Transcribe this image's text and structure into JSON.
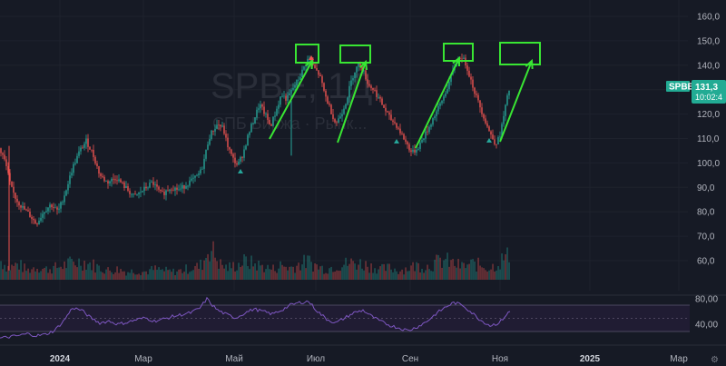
{
  "chart_data": [
    {
      "type": "candlestick",
      "ticker": "SPBE",
      "watermark_symbol": "SPBE, 1Д",
      "watermark_desc": "СПБ Биржа · Рынк...",
      "current_price": "131,3",
      "countdown": "10:02:4",
      "y_axis": {
        "ylim": [
          50,
          165
        ],
        "ticks": [
          "160,0",
          "150,0",
          "140,0",
          "130,0",
          "120,0",
          "110,0",
          "100,0",
          "90,0",
          "80,0",
          "70,0",
          "60,0"
        ],
        "tick_values": [
          160,
          150,
          140,
          130,
          120,
          110,
          100,
          90,
          80,
          70,
          60
        ]
      },
      "x_axis": {
        "tick_labels": [
          "2024",
          "Мар",
          "Май",
          "Июл",
          "Сен",
          "Ноя",
          "2025",
          "Мар"
        ],
        "bold_labels": [
          "2024",
          "2025"
        ]
      },
      "price_path": [
        [
          0,
          106
        ],
        [
          6,
          100
        ],
        [
          12,
          90
        ],
        [
          18,
          85
        ],
        [
          24,
          82
        ],
        [
          32,
          79
        ],
        [
          40,
          75
        ],
        [
          48,
          80
        ],
        [
          56,
          83
        ],
        [
          64,
          80
        ],
        [
          72,
          88
        ],
        [
          80,
          98
        ],
        [
          88,
          105
        ],
        [
          95,
          109
        ],
        [
          102,
          104
        ],
        [
          110,
          95
        ],
        [
          118,
          92
        ],
        [
          128,
          94
        ],
        [
          138,
          90
        ],
        [
          148,
          86
        ],
        [
          158,
          89
        ],
        [
          168,
          92
        ],
        [
          178,
          87
        ],
        [
          188,
          90
        ],
        [
          198,
          89
        ],
        [
          208,
          92
        ],
        [
          216,
          94
        ],
        [
          222,
          97
        ],
        [
          226,
          103
        ],
        [
          230,
          110
        ],
        [
          234,
          113
        ],
        [
          240,
          116
        ],
        [
          246,
          114
        ],
        [
          250,
          108
        ],
        [
          256,
          102
        ],
        [
          262,
          99
        ],
        [
          268,
          104
        ],
        [
          274,
          112
        ],
        [
          280,
          118
        ],
        [
          286,
          124
        ],
        [
          292,
          120
        ],
        [
          298,
          115
        ],
        [
          304,
          121
        ],
        [
          310,
          128
        ],
        [
          316,
          126
        ],
        [
          322,
          130
        ],
        [
          330,
          135
        ],
        [
          336,
          140
        ],
        [
          340,
          143
        ],
        [
          346,
          139
        ],
        [
          352,
          136
        ],
        [
          358,
          128
        ],
        [
          364,
          122
        ],
        [
          370,
          116
        ],
        [
          376,
          120
        ],
        [
          382,
          126
        ],
        [
          386,
          132
        ],
        [
          390,
          137
        ],
        [
          396,
          141
        ],
        [
          400,
          138
        ],
        [
          406,
          132
        ],
        [
          412,
          130
        ],
        [
          418,
          126
        ],
        [
          424,
          122
        ],
        [
          430,
          118
        ],
        [
          436,
          116
        ],
        [
          442,
          112
        ],
        [
          448,
          108
        ],
        [
          454,
          104
        ],
        [
          460,
          106
        ],
        [
          466,
          110
        ],
        [
          472,
          114
        ],
        [
          478,
          119
        ],
        [
          484,
          123
        ],
        [
          490,
          128
        ],
        [
          496,
          134
        ],
        [
          502,
          141
        ],
        [
          508,
          144
        ],
        [
          514,
          140
        ],
        [
          518,
          135
        ],
        [
          524,
          128
        ],
        [
          530,
          122
        ],
        [
          536,
          116
        ],
        [
          540,
          112
        ],
        [
          546,
          108
        ],
        [
          550,
          110
        ],
        [
          554,
          117
        ],
        [
          558,
          125
        ],
        [
          562,
          131.3
        ]
      ],
      "volume": [
        [
          0,
          15
        ],
        [
          10,
          9
        ],
        [
          20,
          12
        ],
        [
          30,
          7
        ],
        [
          40,
          10
        ],
        [
          50,
          8
        ],
        [
          60,
          9
        ],
        [
          70,
          11
        ],
        [
          80,
          13
        ],
        [
          90,
          14
        ],
        [
          100,
          12
        ],
        [
          110,
          9
        ],
        [
          120,
          7
        ],
        [
          130,
          8
        ],
        [
          140,
          6
        ],
        [
          150,
          7
        ],
        [
          160,
          6
        ],
        [
          170,
          8
        ],
        [
          180,
          7
        ],
        [
          190,
          6
        ],
        [
          200,
          7
        ],
        [
          210,
          9
        ],
        [
          220,
          10
        ],
        [
          226,
          16
        ],
        [
          230,
          26
        ],
        [
          236,
          20
        ],
        [
          242,
          12
        ],
        [
          250,
          9
        ],
        [
          260,
          11
        ],
        [
          270,
          14
        ],
        [
          280,
          12
        ],
        [
          290,
          10
        ],
        [
          300,
          8
        ],
        [
          310,
          11
        ],
        [
          320,
          9
        ],
        [
          330,
          12
        ],
        [
          340,
          14
        ],
        [
          350,
          10
        ],
        [
          360,
          8
        ],
        [
          370,
          11
        ],
        [
          380,
          12
        ],
        [
          390,
          13
        ],
        [
          400,
          12
        ],
        [
          410,
          10
        ],
        [
          420,
          8
        ],
        [
          430,
          9
        ],
        [
          440,
          7
        ],
        [
          450,
          9
        ],
        [
          460,
          11
        ],
        [
          470,
          10
        ],
        [
          480,
          13
        ],
        [
          490,
          15
        ],
        [
          500,
          12
        ],
        [
          510,
          10
        ],
        [
          520,
          12
        ],
        [
          530,
          11
        ],
        [
          540,
          9
        ],
        [
          550,
          13
        ],
        [
          556,
          17
        ],
        [
          562,
          18
        ]
      ],
      "rsi": {
        "ticks": [
          "80,00",
          "40,00"
        ],
        "tick_values": [
          80,
          40
        ],
        "path": [
          [
            0,
            18
          ],
          [
            10,
            20
          ],
          [
            20,
            22
          ],
          [
            30,
            25
          ],
          [
            40,
            22
          ],
          [
            50,
            24
          ],
          [
            60,
            30
          ],
          [
            70,
            45
          ],
          [
            80,
            66
          ],
          [
            90,
            62
          ],
          [
            100,
            50
          ],
          [
            110,
            42
          ],
          [
            120,
            45
          ],
          [
            130,
            40
          ],
          [
            140,
            43
          ],
          [
            150,
            47
          ],
          [
            160,
            50
          ],
          [
            170,
            45
          ],
          [
            180,
            48
          ],
          [
            190,
            52
          ],
          [
            200,
            55
          ],
          [
            210,
            58
          ],
          [
            220,
            65
          ],
          [
            228,
            80
          ],
          [
            234,
            70
          ],
          [
            240,
            62
          ],
          [
            250,
            55
          ],
          [
            260,
            50
          ],
          [
            270,
            58
          ],
          [
            280,
            64
          ],
          [
            290,
            60
          ],
          [
            300,
            56
          ],
          [
            310,
            62
          ],
          [
            320,
            70
          ],
          [
            330,
            74
          ],
          [
            340,
            76
          ],
          [
            350,
            60
          ],
          [
            360,
            48
          ],
          [
            370,
            42
          ],
          [
            380,
            50
          ],
          [
            390,
            58
          ],
          [
            400,
            62
          ],
          [
            410,
            52
          ],
          [
            420,
            44
          ],
          [
            430,
            38
          ],
          [
            440,
            34
          ],
          [
            450,
            30
          ],
          [
            460,
            36
          ],
          [
            470,
            44
          ],
          [
            480,
            56
          ],
          [
            490,
            66
          ],
          [
            500,
            74
          ],
          [
            510,
            70
          ],
          [
            520,
            58
          ],
          [
            530,
            46
          ],
          [
            540,
            38
          ],
          [
            550,
            42
          ],
          [
            558,
            55
          ],
          [
            562,
            60
          ]
        ]
      },
      "annotations": {
        "peak_boxes": 4,
        "arrows": 4,
        "signal_markers": 4
      },
      "colors": {
        "background": "#161a25",
        "up": "#26a69a",
        "down": "#ef5350",
        "grid": "#1e222d",
        "rsi_line": "#7e57c2",
        "rsi_band": "#2a1f3f",
        "annotation": "#39e633",
        "price_tag": "#22ab94",
        "text": "#b2b5be"
      }
    }
  ]
}
